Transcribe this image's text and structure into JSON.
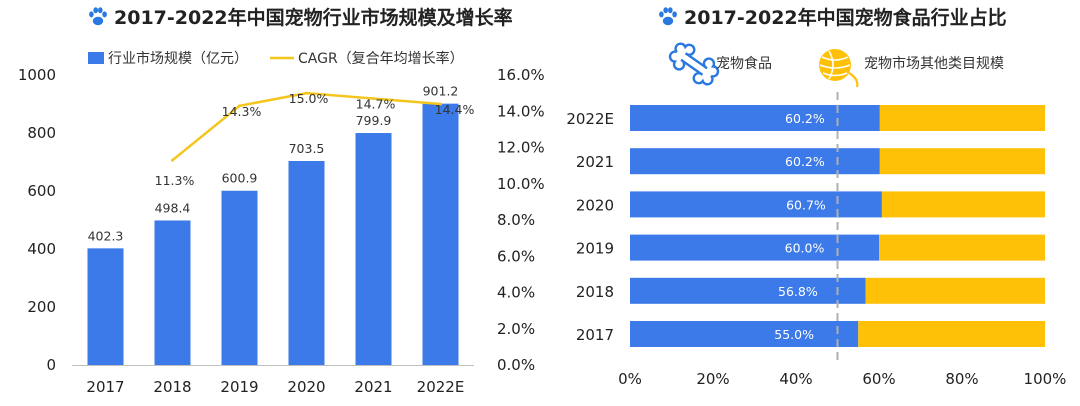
{
  "colors": {
    "bar": "#3b7ae8",
    "line": "#f4c51c",
    "food": "#3b7ae8",
    "other": "#ffc107",
    "paw": "#2979e0",
    "text": "#222222"
  },
  "icons": {
    "title_icon": "paw-icon",
    "legend_left": "bone-icon",
    "legend_right": "yarn-ball-icon"
  },
  "left": {
    "title": "2017-2022年中国宠物行业市场规模及增长率",
    "legend": {
      "bar_label": "行业市场规模（亿元）",
      "line_label": "CAGR（复合年均增长率）"
    }
  },
  "right": {
    "title": "2017-2022年中国宠物食品行业占比",
    "legend": {
      "food_label": "宠物食品",
      "other_label": "宠物市场其他类目规模"
    }
  },
  "chart_data": [
    {
      "type": "bar",
      "title": "2017-2022年中国宠物行业市场规模及增长率",
      "categories": [
        "2017",
        "2018",
        "2019",
        "2020",
        "2021",
        "2022E"
      ],
      "series": [
        {
          "name": "行业市场规模（亿元）",
          "type": "bar",
          "axis": "left",
          "values": [
            402.3,
            498.4,
            600.9,
            703.5,
            799.9,
            901.2
          ],
          "labels": [
            "402.3",
            "498.4",
            "600.9",
            "703.5",
            "799.9",
            "901.2"
          ]
        },
        {
          "name": "CAGR（复合年均增长率）",
          "type": "line",
          "axis": "right",
          "values": [
            null,
            11.3,
            14.3,
            15.0,
            14.7,
            14.4
          ],
          "labels": [
            "",
            "11.3%",
            "14.3%",
            "15.0%",
            "14.7%",
            "14.4%"
          ]
        }
      ],
      "ylim": [
        0,
        1000
      ],
      "yticks": [
        "0",
        "200",
        "400",
        "600",
        "800",
        "1000"
      ],
      "y2lim": [
        0,
        16
      ],
      "y2ticks": [
        "0.0%",
        "2.0%",
        "4.0%",
        "6.0%",
        "8.0%",
        "10.0%",
        "12.0%",
        "14.0%",
        "16.0%"
      ],
      "legend_position": "top",
      "grid": false
    },
    {
      "type": "bar",
      "orientation": "horizontal",
      "stacked": true,
      "title": "2017-2022年中国宠物食品行业占比",
      "categories": [
        "2022E",
        "2021",
        "2020",
        "2019",
        "2018",
        "2017"
      ],
      "series": [
        {
          "name": "宠物食品",
          "values": [
            60.2,
            60.2,
            60.7,
            60.0,
            56.8,
            55.0
          ],
          "labels": [
            "60.2%",
            "60.2%",
            "60.7%",
            "60.0%",
            "56.8%",
            "55.0%"
          ]
        },
        {
          "name": "宠物市场其他类目规模",
          "values": [
            39.8,
            39.8,
            39.3,
            40.0,
            43.2,
            45.0
          ]
        }
      ],
      "xlim": [
        0,
        100
      ],
      "xticks": [
        "0%",
        "20%",
        "40%",
        "60%",
        "80%",
        "100%"
      ],
      "reference_line_x": 50,
      "legend_position": "top",
      "grid": false
    }
  ]
}
